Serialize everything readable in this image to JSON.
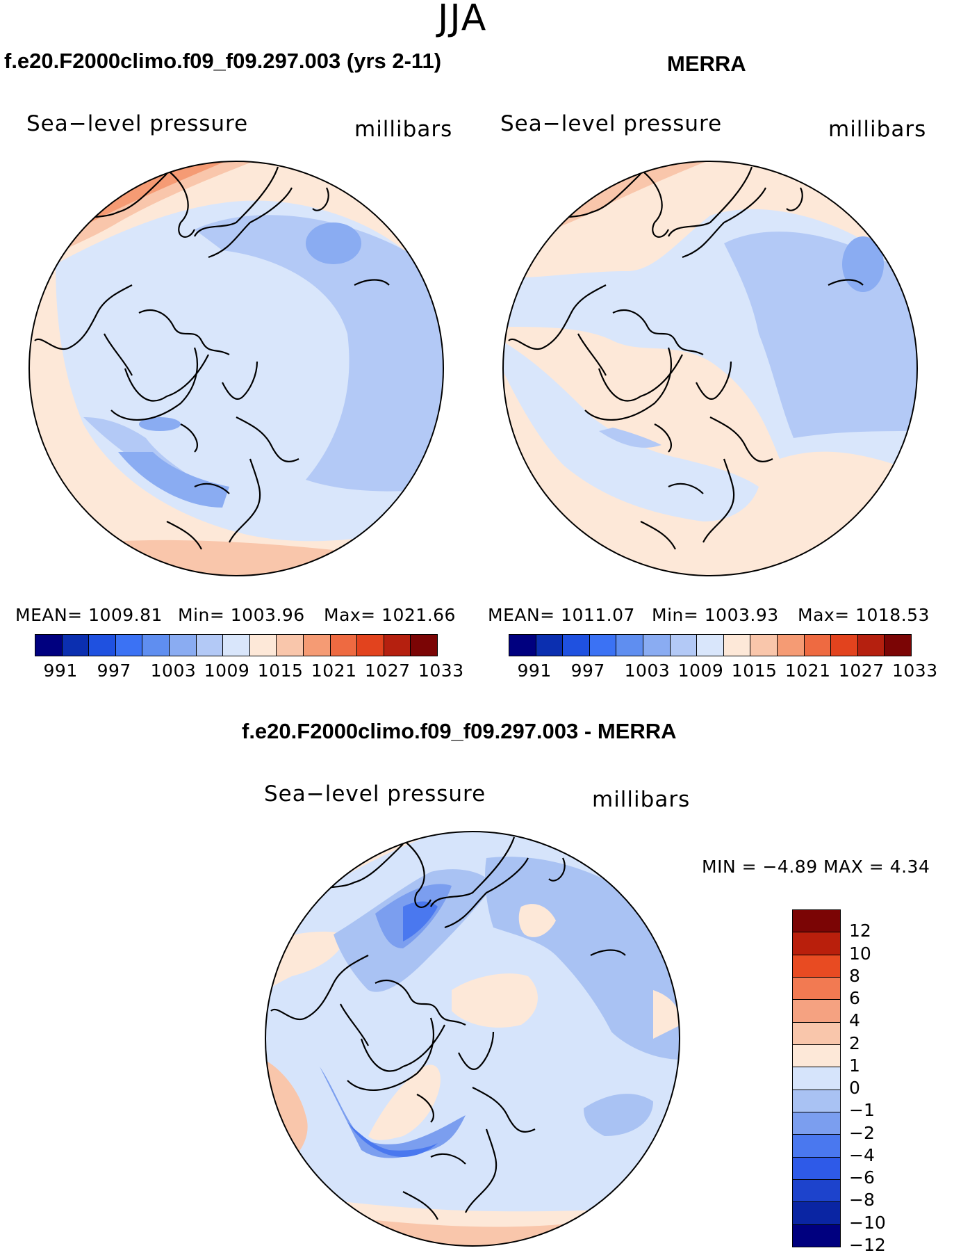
{
  "season": "JJA",
  "colors": {
    "seq": [
      "#00007f",
      "#0b2fb0",
      "#1f51e0",
      "#3b72f4",
      "#5f8ef0",
      "#8aacf2",
      "#b3c9f6",
      "#d9e6fb",
      "#fde8d8",
      "#f9c6ab",
      "#f59b74",
      "#ee6a41",
      "#e2431e",
      "#b5200f",
      "#7b0505"
    ],
    "div": [
      "#00007f",
      "#0a25a3",
      "#1d43cc",
      "#2e5ae8",
      "#4a78ef",
      "#7b9eef",
      "#a9c2f3",
      "#d6e4fb",
      "#fde8d8",
      "#f9c6ab",
      "#f5a281",
      "#f27a52",
      "#e84b22",
      "#b91f0c",
      "#7b0505"
    ]
  },
  "panels": [
    {
      "title": "f.e20.F2000climo.f09_f09.297.003 (yrs 2-11)",
      "variable": "Sea−level pressure",
      "units": "millibars",
      "mean": "MEAN=  1009.81",
      "min": "Min=  1003.96",
      "max": "Max=  1021.66",
      "colorbar_labels": [
        "991",
        "997",
        "1003",
        "1009",
        "1015",
        "1021",
        "1027",
        "1033"
      ]
    },
    {
      "title": "MERRA",
      "variable": "Sea−level pressure",
      "units": "millibars",
      "mean": "MEAN=  1011.07",
      "min": "Min=  1003.93",
      "max": "Max=  1018.53",
      "colorbar_labels": [
        "991",
        "997",
        "1003",
        "1009",
        "1015",
        "1021",
        "1027",
        "1033"
      ]
    }
  ],
  "diff": {
    "title": "f.e20.F2000climo.f09_f09.297.003 - MERRA",
    "variable": "Sea−level pressure",
    "units": "millibars",
    "minmax": "MIN =   −4.89  MAX =     4.34",
    "colorbar_labels": [
      "12",
      "10",
      "8",
      "6",
      "4",
      "2",
      "1",
      "0",
      "−1",
      "−2",
      "−4",
      "−6",
      "−8",
      "−10",
      "−12"
    ]
  }
}
